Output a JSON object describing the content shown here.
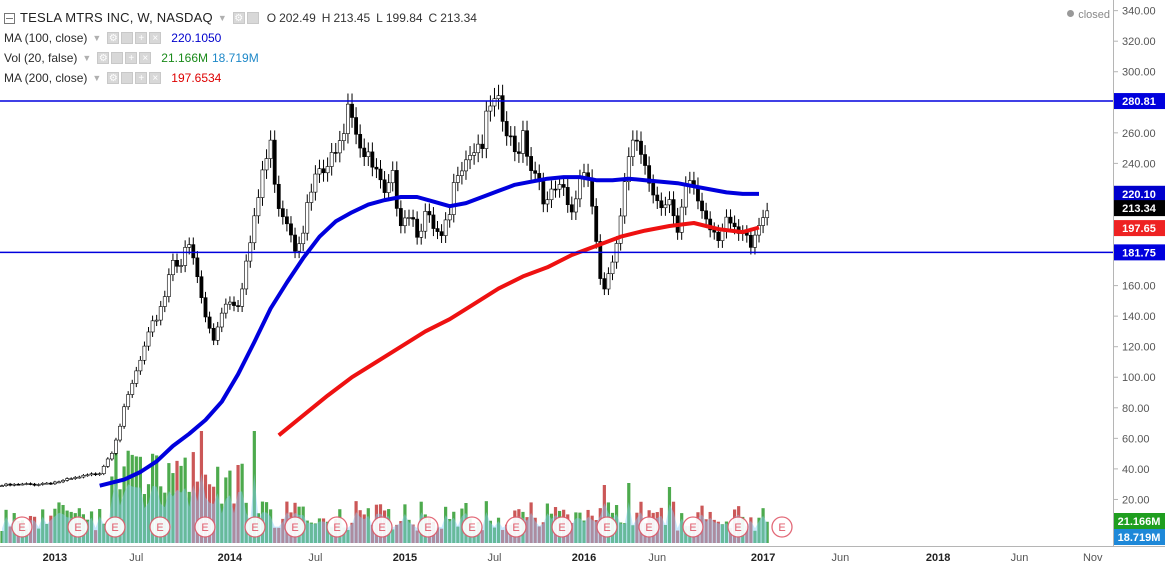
{
  "header": {
    "title": "TESLA MTRS INC, W, NASDAQ",
    "ohlc": [
      {
        "label": "O",
        "value": "202.49"
      },
      {
        "label": "H",
        "value": "213.45"
      },
      {
        "label": "L",
        "value": "199.84"
      },
      {
        "label": "C",
        "value": "213.34"
      }
    ],
    "status": "closed"
  },
  "indicators": [
    {
      "label": "MA (100, close)",
      "values": [
        "220.1050"
      ],
      "colors": [
        "#0000cc"
      ]
    },
    {
      "label": "Vol (20, false)",
      "values": [
        "21.166M",
        "18.719M"
      ],
      "colors": [
        "#1a8a1a",
        "#1e88c8"
      ]
    },
    {
      "label": "MA (200, close)",
      "values": [
        "197.6534"
      ],
      "colors": [
        "#dd0000"
      ]
    }
  ],
  "chart_data": {
    "type": "candlestick",
    "symbol": "TESLA MTRS INC",
    "interval": "W",
    "exchange": "NASDAQ",
    "y_axis": {
      "range": [
        0,
        345
      ],
      "ticks": [
        "340.00",
        "320.00",
        "300.00",
        "280.00",
        "260.00",
        "240.00",
        "220.00",
        "200.00",
        "180.00",
        "160.00",
        "140.00",
        "120.00",
        "100.00",
        "80.00",
        "60.00",
        "40.00",
        "20.00"
      ]
    },
    "x_axis": {
      "ticks": [
        "2013",
        "Jul",
        "2014",
        "Jul",
        "2015",
        "Jul",
        "2016",
        "Jun",
        "2017",
        "Jun",
        "2018",
        "Jun",
        "Nov"
      ],
      "bold": [
        "2013",
        "2014",
        "2015",
        "2016",
        "2017",
        "2018"
      ]
    },
    "horizontal_lines": [
      {
        "value": 280.81,
        "label": "280.81",
        "color": "#0000dd"
      },
      {
        "value": 181.75,
        "label": "181.75",
        "color": "#0000dd"
      }
    ],
    "price_labels": [
      {
        "value": 220.1,
        "label": "220.10",
        "bg": "#0000cc",
        "fg": "#ffffff"
      },
      {
        "value": 213.34,
        "label": "213.34",
        "bg": "#000000",
        "fg": "#ffffff"
      },
      {
        "value": 197.65,
        "label": "197.65",
        "bg": "#ee2222",
        "fg": "#ffffff"
      }
    ],
    "volume_labels": [
      {
        "label": "21.166M",
        "bg": "#1f9e1f",
        "fg": "#ffffff"
      },
      {
        "label": "18.719M",
        "bg": "#1e88d8",
        "fg": "#ffffff"
      }
    ],
    "price_path": [
      [
        0,
        29
      ],
      [
        8,
        30
      ],
      [
        15,
        32
      ],
      [
        22,
        36
      ],
      [
        24,
        38
      ],
      [
        27,
        52
      ],
      [
        30,
        78
      ],
      [
        32,
        95
      ],
      [
        35,
        118
      ],
      [
        38,
        140
      ],
      [
        40,
        155
      ],
      [
        42,
        180
      ],
      [
        44,
        175
      ],
      [
        46,
        185
      ],
      [
        48,
        165
      ],
      [
        50,
        138
      ],
      [
        52,
        125
      ],
      [
        54,
        145
      ],
      [
        56,
        152
      ],
      [
        58,
        150
      ],
      [
        60,
        175
      ],
      [
        62,
        200
      ],
      [
        64,
        235
      ],
      [
        66,
        250
      ],
      [
        68,
        215
      ],
      [
        70,
        205
      ],
      [
        72,
        188
      ],
      [
        74,
        200
      ],
      [
        76,
        220
      ],
      [
        78,
        235
      ],
      [
        80,
        232
      ],
      [
        82,
        255
      ],
      [
        84,
        268
      ],
      [
        85,
        285
      ],
      [
        87,
        265
      ],
      [
        89,
        245
      ],
      [
        92,
        232
      ],
      [
        94,
        215
      ],
      [
        96,
        228
      ],
      [
        98,
        206
      ],
      [
        100,
        210
      ],
      [
        102,
        198
      ],
      [
        104,
        205
      ],
      [
        106,
        195
      ],
      [
        108,
        188
      ],
      [
        110,
        205
      ],
      [
        112,
        240
      ],
      [
        115,
        250
      ],
      [
        118,
        255
      ],
      [
        120,
        275
      ],
      [
        122,
        275
      ],
      [
        124,
        258
      ],
      [
        126,
        245
      ],
      [
        128,
        262
      ],
      [
        130,
        240
      ],
      [
        132,
        230
      ],
      [
        134,
        212
      ],
      [
        136,
        222
      ],
      [
        138,
        218
      ],
      [
        140,
        205
      ],
      [
        142,
        232
      ],
      [
        144,
        238
      ],
      [
        146,
        190
      ],
      [
        147,
        165
      ],
      [
        148,
        160
      ],
      [
        150,
        170
      ],
      [
        152,
        205
      ],
      [
        154,
        240
      ],
      [
        156,
        255
      ],
      [
        158,
        245
      ],
      [
        160,
        220
      ],
      [
        162,
        218
      ],
      [
        164,
        215
      ],
      [
        166,
        190
      ],
      [
        168,
        222
      ],
      [
        170,
        225
      ],
      [
        172,
        210
      ],
      [
        174,
        200
      ],
      [
        176,
        195
      ],
      [
        178,
        205
      ],
      [
        180,
        192
      ],
      [
        182,
        190
      ],
      [
        184,
        185
      ],
      [
        186,
        200
      ],
      [
        188,
        213
      ]
    ],
    "ma100": [
      [
        24,
        29
      ],
      [
        30,
        33
      ],
      [
        34,
        38
      ],
      [
        38,
        45
      ],
      [
        42,
        55
      ],
      [
        46,
        63
      ],
      [
        50,
        72
      ],
      [
        54,
        84
      ],
      [
        58,
        102
      ],
      [
        62,
        123
      ],
      [
        66,
        145
      ],
      [
        70,
        162
      ],
      [
        74,
        178
      ],
      [
        78,
        192
      ],
      [
        82,
        202
      ],
      [
        86,
        208
      ],
      [
        90,
        213
      ],
      [
        94,
        216
      ],
      [
        98,
        218
      ],
      [
        102,
        218
      ],
      [
        106,
        215
      ],
      [
        110,
        212
      ],
      [
        114,
        214
      ],
      [
        118,
        218
      ],
      [
        122,
        222
      ],
      [
        126,
        226
      ],
      [
        130,
        228
      ],
      [
        134,
        230
      ],
      [
        138,
        231
      ],
      [
        142,
        231
      ],
      [
        146,
        229
      ],
      [
        150,
        229
      ],
      [
        154,
        230
      ],
      [
        158,
        229
      ],
      [
        162,
        228
      ],
      [
        166,
        227
      ],
      [
        170,
        225
      ],
      [
        174,
        223
      ],
      [
        178,
        221
      ],
      [
        182,
        220
      ],
      [
        186,
        220
      ]
    ],
    "ma200": [
      [
        68,
        62
      ],
      [
        74,
        75
      ],
      [
        80,
        88
      ],
      [
        86,
        100
      ],
      [
        92,
        110
      ],
      [
        98,
        120
      ],
      [
        104,
        130
      ],
      [
        110,
        138
      ],
      [
        116,
        148
      ],
      [
        122,
        158
      ],
      [
        128,
        166
      ],
      [
        134,
        172
      ],
      [
        140,
        180
      ],
      [
        146,
        186
      ],
      [
        152,
        192
      ],
      [
        158,
        196
      ],
      [
        164,
        199
      ],
      [
        170,
        201
      ],
      [
        176,
        197
      ],
      [
        182,
        195
      ],
      [
        186,
        198
      ]
    ],
    "earnings_markers": [
      "E",
      "E",
      "E",
      "E",
      "E",
      "E",
      "E",
      "E",
      "E",
      "E",
      "E",
      "E",
      "E",
      "E",
      "E",
      "E",
      "E",
      "E"
    ],
    "colors": {
      "up_candle": "#ffffff",
      "down_candle": "#000000",
      "volume_up": "#2e9b2e",
      "volume_down": "#c23a3a",
      "volume_ma": "#87cefa",
      "ma100": "#0000dd",
      "ma200": "#ee1111",
      "earnings": "#e05a6a"
    }
  }
}
